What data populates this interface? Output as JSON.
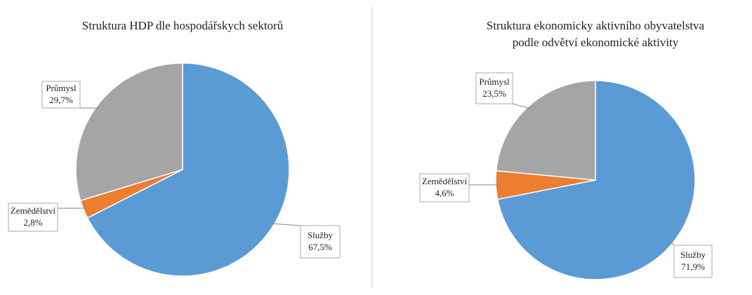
{
  "chart_data": [
    {
      "type": "pie",
      "title": [
        "Struktura HDP dle hospodářskych sektorů"
      ],
      "categories": [
        "Služby",
        "Zemědělství",
        "Průmysl"
      ],
      "values": [
        67.5,
        2.8,
        29.7
      ],
      "value_labels": [
        "67,5%",
        "2,8%",
        "29,7%"
      ],
      "colors": [
        "#5b9bd5",
        "#ed7d31",
        "#a5a5a5"
      ]
    },
    {
      "type": "pie",
      "title": [
        "Struktura ekonomicky aktivního obyvatelstva",
        "podle odvětví ekonomické aktivity"
      ],
      "categories": [
        "Služby",
        "Zemědělství",
        "Průmysl"
      ],
      "values": [
        71.9,
        4.6,
        23.5
      ],
      "value_labels": [
        "71,9%",
        "4,6%",
        "23,5%"
      ],
      "colors": [
        "#5b9bd5",
        "#ed7d31",
        "#a5a5a5"
      ]
    }
  ]
}
